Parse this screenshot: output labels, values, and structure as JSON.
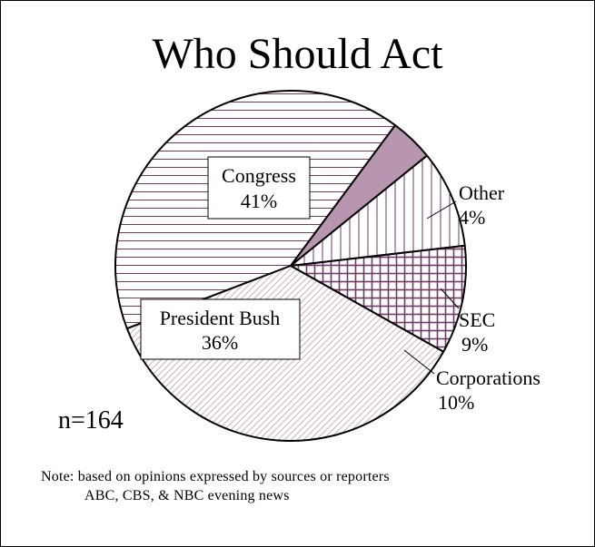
{
  "chart_data": {
    "type": "pie",
    "title": "Who Should Act",
    "slices": [
      {
        "label": "Congress",
        "pct": "41%",
        "value": 41,
        "pattern": "hlines"
      },
      {
        "label": "Other",
        "pct": "4%",
        "value": 4,
        "pattern": "solid"
      },
      {
        "label": "SEC",
        "pct": "9%",
        "value": 9,
        "pattern": "vlines"
      },
      {
        "label": "Corporations",
        "pct": "10%",
        "value": 10,
        "pattern": "grid"
      },
      {
        "label": "President Bush",
        "pct": "36%",
        "value": 36,
        "pattern": "diagonal"
      }
    ],
    "n_label": "n=164",
    "note": {
      "line1": "Note: based on opinions expressed by sources or reporters",
      "line2": "ABC, CBS, & NBC evening news"
    },
    "colors": {
      "stroke": "#5a1f4f",
      "pattern": "#6e3a66",
      "diagonal": "#c9b3c6",
      "solid": "#b896b0"
    }
  }
}
